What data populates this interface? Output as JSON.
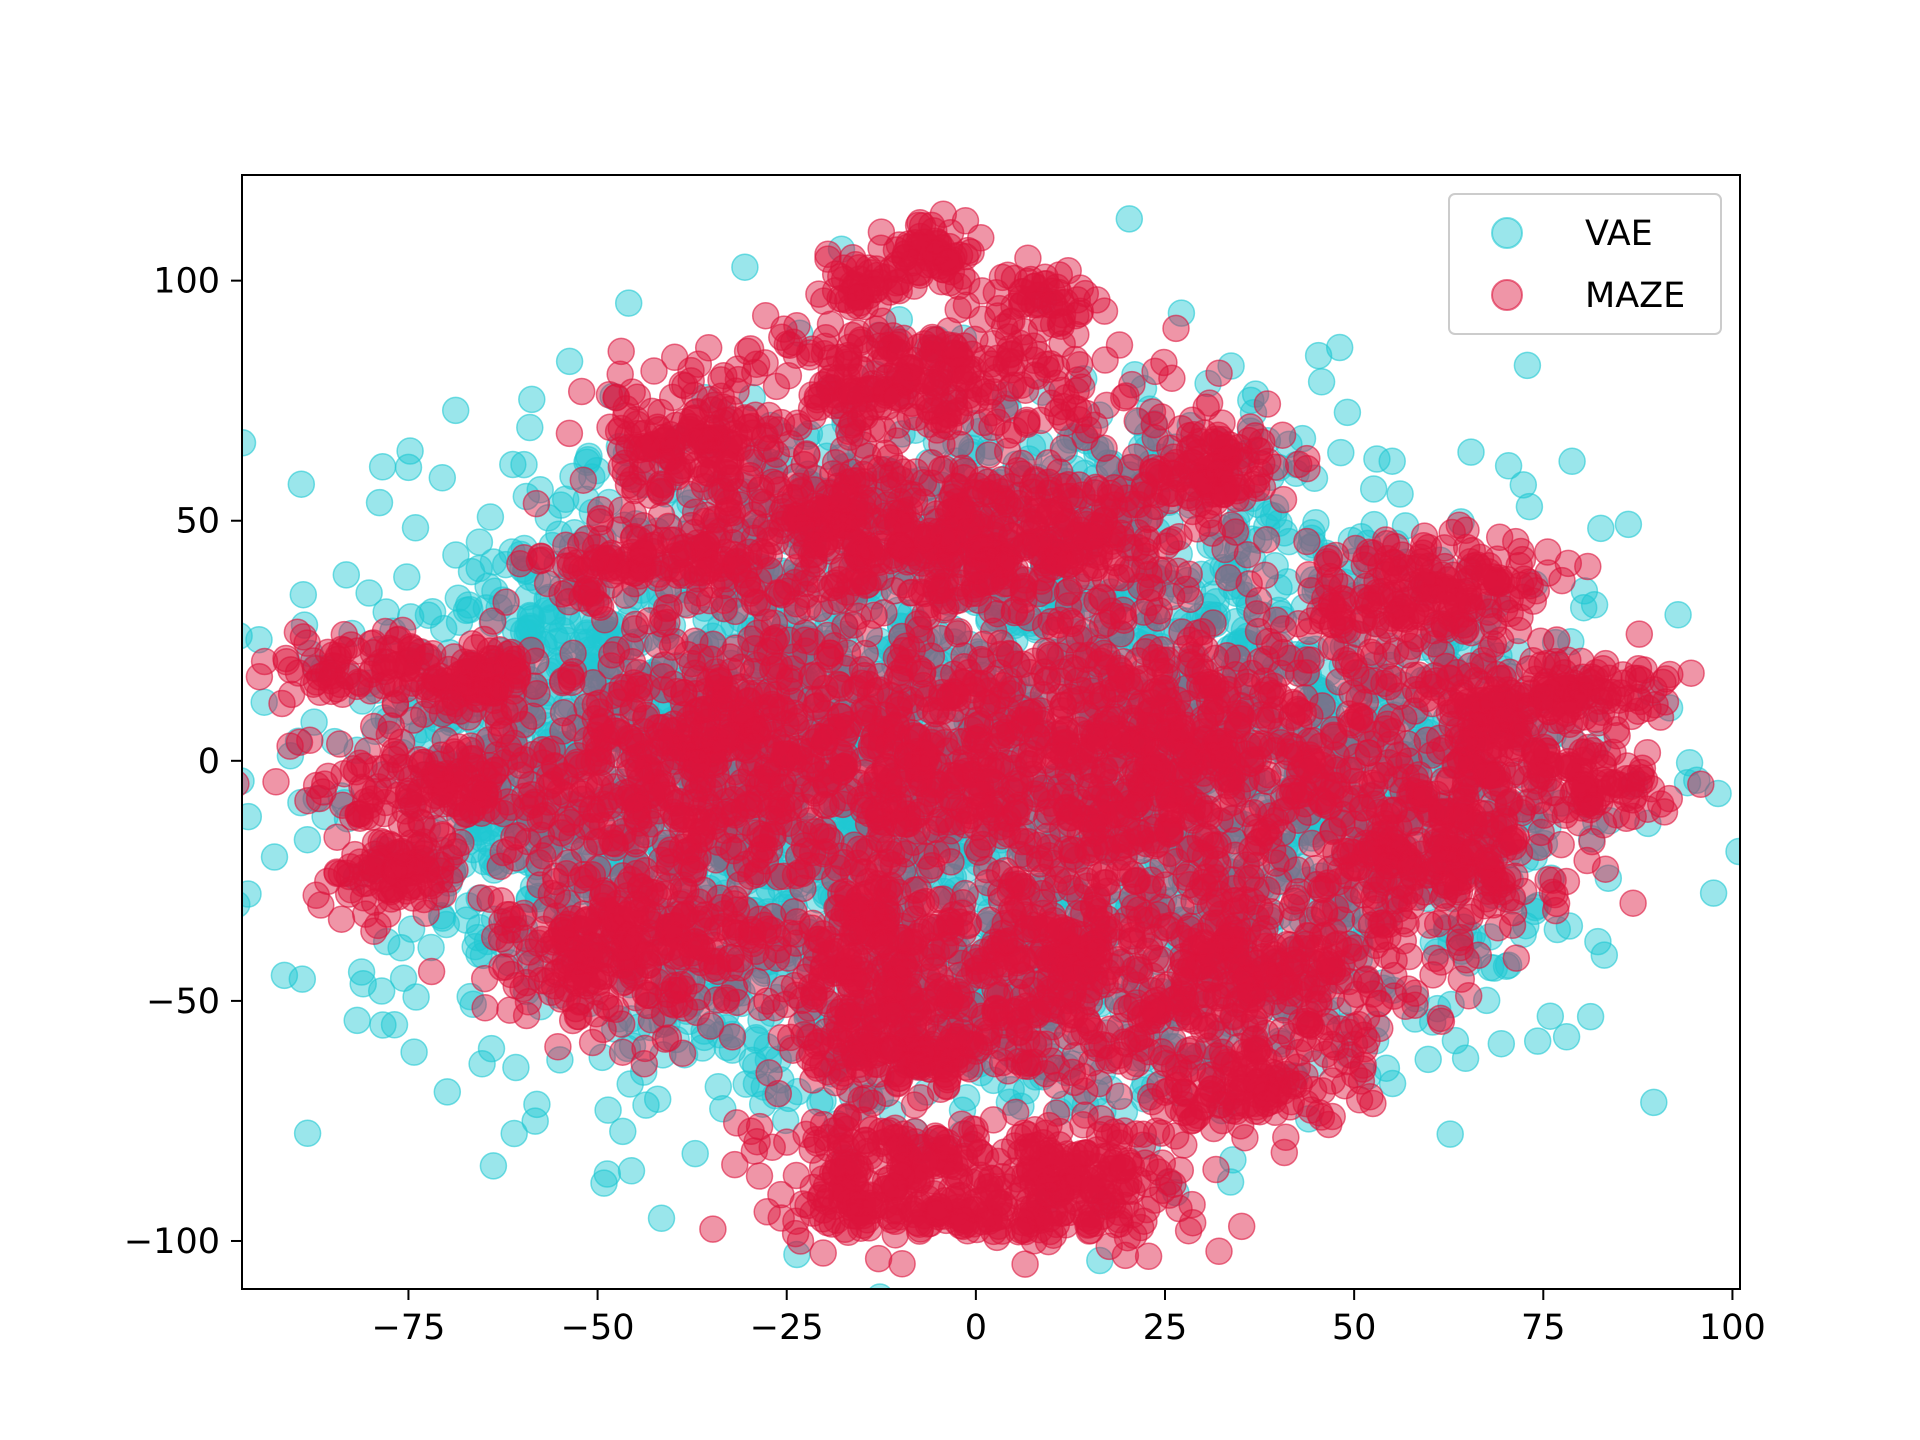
{
  "chart_data": {
    "type": "scatter",
    "title": "",
    "xlabel": "",
    "ylabel": "",
    "xlim": [
      -97,
      101
    ],
    "ylim": [
      -110,
      122
    ],
    "xticks": [
      -75,
      -50,
      -25,
      0,
      25,
      50,
      75,
      100
    ],
    "yticks": [
      -100,
      -50,
      0,
      50,
      100
    ],
    "xtick_labels": [
      "−75",
      "−50",
      "−25",
      "0",
      "25",
      "50",
      "75",
      "100"
    ],
    "ytick_labels": [
      "−100",
      "−50",
      "0",
      "50",
      "100"
    ],
    "grid": false,
    "legend_position": "top-right",
    "legend": [
      "VAE",
      "MAZE"
    ],
    "series": [
      {
        "name": "VAE",
        "color": "#1fc8d2",
        "alpha": 0.45,
        "marker": "circle",
        "clusters": [
          {
            "cx": -5,
            "cy": 0,
            "sx": 38,
            "sy": 34,
            "n": 1600
          },
          {
            "cx": -40,
            "cy": -5,
            "sx": 18,
            "sy": 25,
            "n": 500
          },
          {
            "cx": 35,
            "cy": 5,
            "sx": 20,
            "sy": 28,
            "n": 500
          },
          {
            "cx": -5,
            "cy": 55,
            "sx": 22,
            "sy": 12,
            "n": 250
          },
          {
            "cx": 0,
            "cy": -55,
            "sx": 24,
            "sy": 12,
            "n": 250
          },
          {
            "cx": 60,
            "cy": -10,
            "sx": 10,
            "sy": 20,
            "n": 180
          },
          {
            "cx": -60,
            "cy": 10,
            "sx": 8,
            "sy": 20,
            "n": 180
          }
        ]
      },
      {
        "name": "MAZE",
        "color": "#dc143c",
        "alpha": 0.45,
        "marker": "circle",
        "clusters": [
          {
            "cx": -5,
            "cy": 106,
            "sx": 3,
            "sy": 3,
            "n": 60
          },
          {
            "cx": -15,
            "cy": 100,
            "sx": 3,
            "sy": 3,
            "n": 50
          },
          {
            "cx": 8,
            "cy": 97,
            "sx": 4,
            "sy": 3,
            "n": 50
          },
          {
            "cx": -5,
            "cy": 80,
            "sx": 14,
            "sy": 6,
            "n": 300
          },
          {
            "cx": -38,
            "cy": 66,
            "sx": 7,
            "sy": 7,
            "n": 160
          },
          {
            "cx": 31,
            "cy": 61,
            "sx": 5,
            "sy": 5,
            "n": 120
          },
          {
            "cx": -15,
            "cy": 48,
            "sx": 10,
            "sy": 9,
            "n": 320
          },
          {
            "cx": 10,
            "cy": 45,
            "sx": 10,
            "sy": 9,
            "n": 300
          },
          {
            "cx": -43,
            "cy": 41,
            "sx": 8,
            "sy": 5,
            "n": 150
          },
          {
            "cx": 60,
            "cy": 35,
            "sx": 8,
            "sy": 6,
            "n": 200
          },
          {
            "cx": -77,
            "cy": 19,
            "sx": 8,
            "sy": 4,
            "n": 120
          },
          {
            "cx": -65,
            "cy": 17,
            "sx": 4,
            "sy": 4,
            "n": 60
          },
          {
            "cx": 80,
            "cy": 14,
            "sx": 6,
            "sy": 4,
            "n": 100
          },
          {
            "cx": -70,
            "cy": -6,
            "sx": 11,
            "sy": 6,
            "n": 200
          },
          {
            "cx": 83,
            "cy": -5,
            "sx": 5,
            "sy": 4,
            "n": 80
          },
          {
            "cx": -38,
            "cy": 0,
            "sx": 11,
            "sy": 14,
            "n": 450
          },
          {
            "cx": -12,
            "cy": 2,
            "sx": 11,
            "sy": 14,
            "n": 400
          },
          {
            "cx": 15,
            "cy": 0,
            "sx": 11,
            "sy": 14,
            "n": 400
          },
          {
            "cx": 40,
            "cy": 2,
            "sx": 13,
            "sy": 14,
            "n": 450
          },
          {
            "cx": 68,
            "cy": 5,
            "sx": 6,
            "sy": 8,
            "n": 150
          },
          {
            "cx": -77,
            "cy": -24,
            "sx": 5,
            "sy": 4,
            "n": 90
          },
          {
            "cx": 62,
            "cy": -22,
            "sx": 8,
            "sy": 8,
            "n": 220
          },
          {
            "cx": -48,
            "cy": -38,
            "sx": 9,
            "sy": 9,
            "n": 320
          },
          {
            "cx": -15,
            "cy": -40,
            "sx": 8,
            "sy": 10,
            "n": 260
          },
          {
            "cx": 12,
            "cy": -45,
            "sx": 11,
            "sy": 12,
            "n": 350
          },
          {
            "cx": 40,
            "cy": -45,
            "sx": 10,
            "sy": 10,
            "n": 280
          },
          {
            "cx": -10,
            "cy": -60,
            "sx": 8,
            "sy": 5,
            "n": 150
          },
          {
            "cx": 35,
            "cy": -68,
            "sx": 8,
            "sy": 5,
            "n": 120
          },
          {
            "cx": -12,
            "cy": -85,
            "sx": 8,
            "sy": 7,
            "n": 220
          },
          {
            "cx": 12,
            "cy": -88,
            "sx": 8,
            "sy": 6,
            "n": 200
          },
          {
            "cx": 0,
            "cy": -95,
            "sx": 14,
            "sy": 2,
            "n": 80
          }
        ]
      }
    ]
  }
}
